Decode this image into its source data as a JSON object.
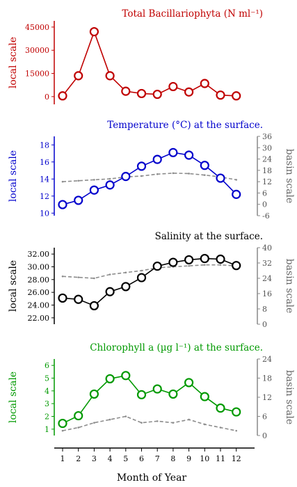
{
  "figure": {
    "xlabel": "Month of Year"
  },
  "chart_data": [
    {
      "type": "line",
      "title": "Total Bacillariophyta (N ml⁻¹)",
      "color": "#c00000",
      "ylabel": "local scale",
      "x": [
        1,
        2,
        3,
        4,
        5,
        6,
        7,
        8,
        9,
        10,
        11,
        12
      ],
      "ylim": [
        -5000,
        49000
      ],
      "yticks": [
        0,
        15000,
        30000,
        45000
      ],
      "series": [
        {
          "role": "local",
          "values": [
            500,
            13500,
            42000,
            13500,
            3500,
            2000,
            1500,
            6500,
            3000,
            8500,
            1000,
            500
          ]
        }
      ]
    },
    {
      "type": "line",
      "title": "Temperature (°C) at the surface.",
      "color": "#0000cc",
      "ylabel": "local scale",
      "ylabel_right": "basin scale",
      "x": [
        1,
        2,
        3,
        4,
        5,
        6,
        7,
        8,
        9,
        10,
        11,
        12
      ],
      "ylim": [
        9.7,
        19
      ],
      "yticks": [
        10,
        12,
        14,
        16,
        18
      ],
      "ylim_right": [
        -6,
        36
      ],
      "yticks_right": [
        -6,
        0,
        6,
        12,
        18,
        24,
        30,
        36
      ],
      "series": [
        {
          "role": "local",
          "values": [
            11.0,
            11.5,
            12.7,
            13.3,
            14.3,
            15.5,
            16.3,
            17.1,
            16.8,
            15.6,
            14.1,
            12.2
          ]
        },
        {
          "role": "basin",
          "values": [
            12,
            12.5,
            13,
            13.5,
            14.5,
            15,
            16,
            16.5,
            16.3,
            15.5,
            14.5,
            13
          ]
        }
      ]
    },
    {
      "type": "line",
      "title": "Salinity at the surface.",
      "color": "#000000",
      "ylabel": "local scale",
      "ylabel_right": "basin scale",
      "x": [
        1,
        2,
        3,
        4,
        5,
        6,
        7,
        8,
        9,
        10,
        11,
        12
      ],
      "ylim": [
        21,
        33
      ],
      "yticks": [
        22.0,
        24.0,
        26.0,
        28.0,
        30.0,
        32.0
      ],
      "ytick_labels": [
        "22.00",
        "24.00",
        "26.00",
        "28.00",
        "30.00",
        "32.00"
      ],
      "ylim_right": [
        0,
        40
      ],
      "yticks_right": [
        0,
        8,
        16,
        24,
        32,
        40
      ],
      "series": [
        {
          "role": "local",
          "values": [
            25.1,
            24.9,
            23.9,
            26.1,
            26.9,
            28.3,
            30.1,
            30.7,
            31.1,
            31.3,
            31.2,
            30.2
          ]
        },
        {
          "role": "basin",
          "values": [
            25,
            24.5,
            24,
            26,
            27,
            28,
            29.5,
            30,
            30.5,
            31,
            31,
            30.5
          ]
        }
      ]
    },
    {
      "type": "line",
      "title": "Chlorophyll a (µg l⁻¹) at the surface.",
      "color": "#009900",
      "ylabel": "local scale",
      "ylabel_right": "basin scale",
      "x": [
        1,
        2,
        3,
        4,
        5,
        6,
        7,
        8,
        9,
        10,
        11,
        12
      ],
      "ylim": [
        0.5,
        6.5
      ],
      "yticks": [
        1,
        2,
        3,
        4,
        5,
        6
      ],
      "ylim_right": [
        0,
        24
      ],
      "yticks_right": [
        0,
        6,
        12,
        18,
        24
      ],
      "series": [
        {
          "role": "local",
          "values": [
            1.45,
            2.05,
            3.75,
            4.95,
            5.2,
            3.7,
            4.15,
            3.75,
            4.65,
            3.55,
            2.65,
            2.35
          ]
        },
        {
          "role": "basin",
          "values": [
            1.5,
            2.5,
            4,
            5,
            6,
            4,
            4.5,
            4,
            5,
            3.5,
            2.5,
            1.5
          ]
        }
      ]
    }
  ]
}
